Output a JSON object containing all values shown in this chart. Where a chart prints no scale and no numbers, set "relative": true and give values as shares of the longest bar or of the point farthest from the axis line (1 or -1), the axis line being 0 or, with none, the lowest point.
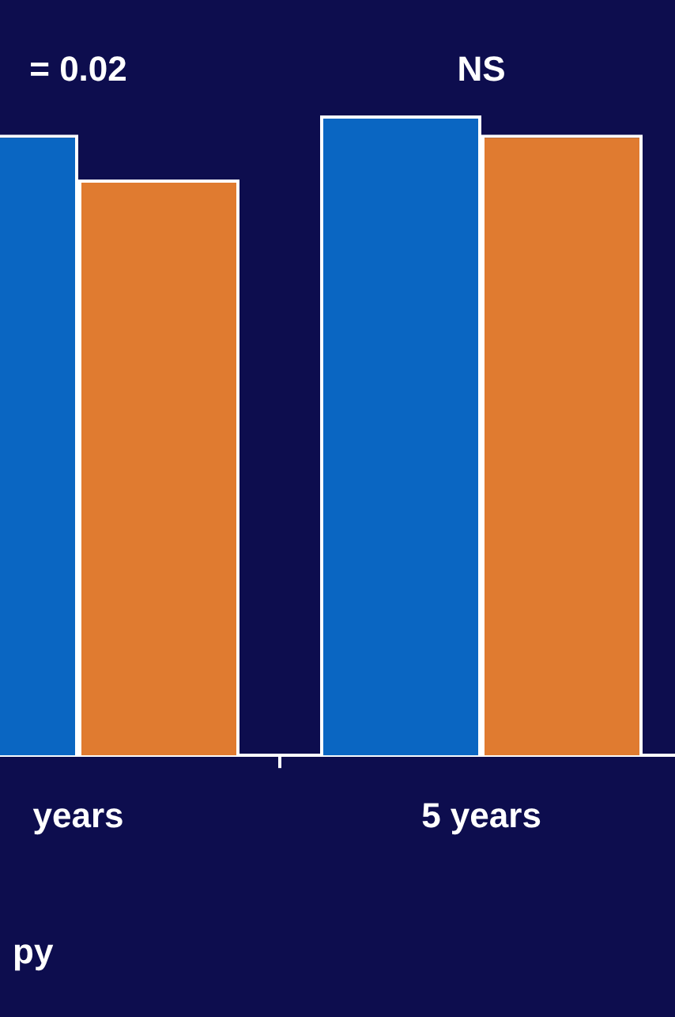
{
  "chart_data": {
    "type": "bar",
    "relative": true,
    "xlabel": "py",
    "categories": [
      "years",
      "5 years"
    ],
    "series": [
      {
        "color": "#0a66c2",
        "values": [
          0.97,
          1
        ]
      },
      {
        "color": "#e07b30",
        "values": [
          0.9,
          0.97
        ]
      }
    ],
    "annotations": [
      "= 0.02",
      "NS"
    ]
  }
}
